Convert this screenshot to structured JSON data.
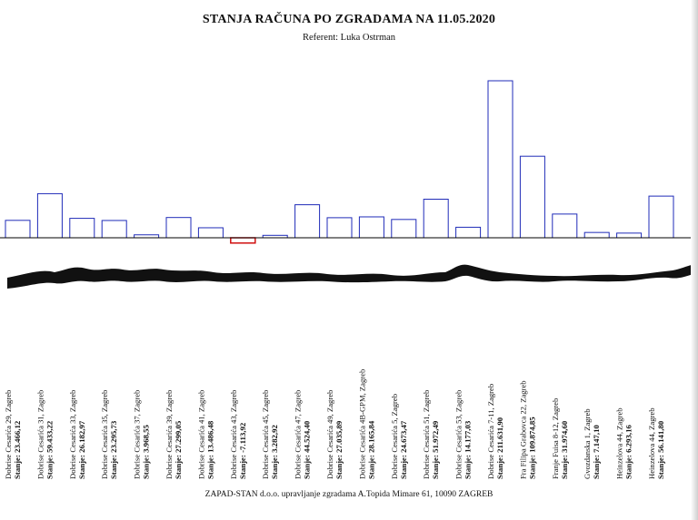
{
  "page": {
    "title": "STANJA RAČUNA PO ZGRADAMA NA 11.05.2020",
    "subtitle": "Referent: Luka Ostrman",
    "footer": "ZAPAD-STAN d.o.o. upravljanje zgradama A.Topida Mimare 61, 10090 ZAGREB"
  },
  "colors": {
    "positive_bar": "#1f2bb8",
    "negative_bar": "#d01010",
    "baseline": "#000000",
    "torn_edge": "#111111"
  },
  "chart_data": {
    "type": "bar",
    "title": "STANJA RAČUNA PO ZGRADAMA NA 11.05.2020",
    "subtitle": "Referent: Luka Ostrman",
    "value_label_prefix": "Stanje:",
    "axis_break": true,
    "grid": false,
    "categories": [
      "Dobrise Cesarića 29, Zagreb",
      "Dobrise Cesarića 31, Zagreb",
      "Dobrise Cesarića 33, Zagreb",
      "Dobrise Cesarića 35, Zagreb",
      "Dobrise Cesarića 37, Zagreb",
      "Dobrise Cesarića 39, Zagreb",
      "Dobrise Cesarića 41, Zagreb",
      "Dobrise Cesarića 43, Zagreb",
      "Dobrise Cesarića 45, Zagreb",
      "Dobrise Cesarića 47, Zagreb",
      "Dobrise Cesarića 49, Zagreb",
      "Dobrise Cesarića 4B-GPM, Zagreb",
      "Dobrise Cesarića 5, Zagreb",
      "Dobrise Cesarića 51, Zagreb",
      "Dobrise Cesarića 53, Zagreb",
      "Dobrise Cesarića 7-11, Zagreb",
      "Fra Filipa Grabovca 22, Zagreb",
      "Franje Fuisa 8-12, Zagreb",
      "Gvozdanska 1, Zagreb",
      "Heinzelova 44, Zagreb",
      "Heinzelova 44, Zagreb"
    ],
    "values": [
      23466.12,
      59433.22,
      26182.97,
      23295.73,
      3968.55,
      27299.05,
      13486.48,
      -7113.92,
      3282.92,
      44524.4,
      27035.89,
      28165.84,
      24673.47,
      51972.49,
      14177.03,
      211631.9,
      109874.85,
      31974.6,
      7147.1,
      6293.16,
      56141.8
    ],
    "value_labels": [
      "23.466,12",
      "59.433,22",
      "26.182,97",
      "23.295,73",
      "3.968,55",
      "27.299,05",
      "13.486,48",
      "-7.113,92",
      "3.282,92",
      "44.524,40",
      "27.035,89",
      "28.165,84",
      "24.673,47",
      "51.972,49",
      "14.177,03",
      "211.631,90",
      "109.874,85",
      "31.974,60",
      "7.147,10",
      "6.293,16",
      "56.141,80"
    ]
  }
}
